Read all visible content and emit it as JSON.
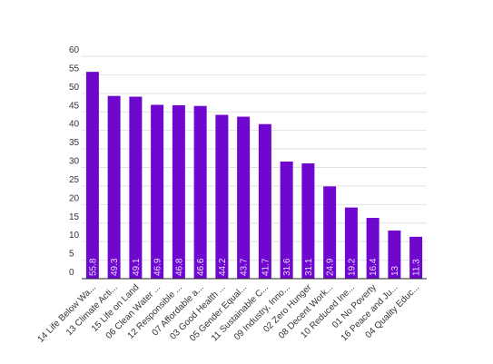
{
  "chart_data": {
    "type": "bar",
    "categories": [
      "14 Life Below Wa...",
      "13 Climate Acti...",
      "15 Life on Land",
      "06 Clean Water ...",
      "12 Responsible ...",
      "07 Affordable a...",
      "03 Good Health ...",
      "05 Gender Equal...",
      "11 Sustainable C...",
      "09 Industry, Inno...",
      "02 Zero Hunger",
      "08 Decent Work...",
      "10 Reduced Ine...",
      "01 No Poverty",
      "16 Peace and Ju...",
      "04 Quality Educ..."
    ],
    "values": [
      55.8,
      49.3,
      49.1,
      46.9,
      46.8,
      46.6,
      44.2,
      43.7,
      41.7,
      31.6,
      31.1,
      24.9,
      19.2,
      16.4,
      13,
      11.3
    ],
    "color": "#6f07cf",
    "ylim": [
      0,
      60
    ],
    "yticks": [
      0,
      5,
      10,
      15,
      20,
      25,
      30,
      35,
      40,
      45,
      50,
      55,
      60
    ],
    "grid": true
  }
}
